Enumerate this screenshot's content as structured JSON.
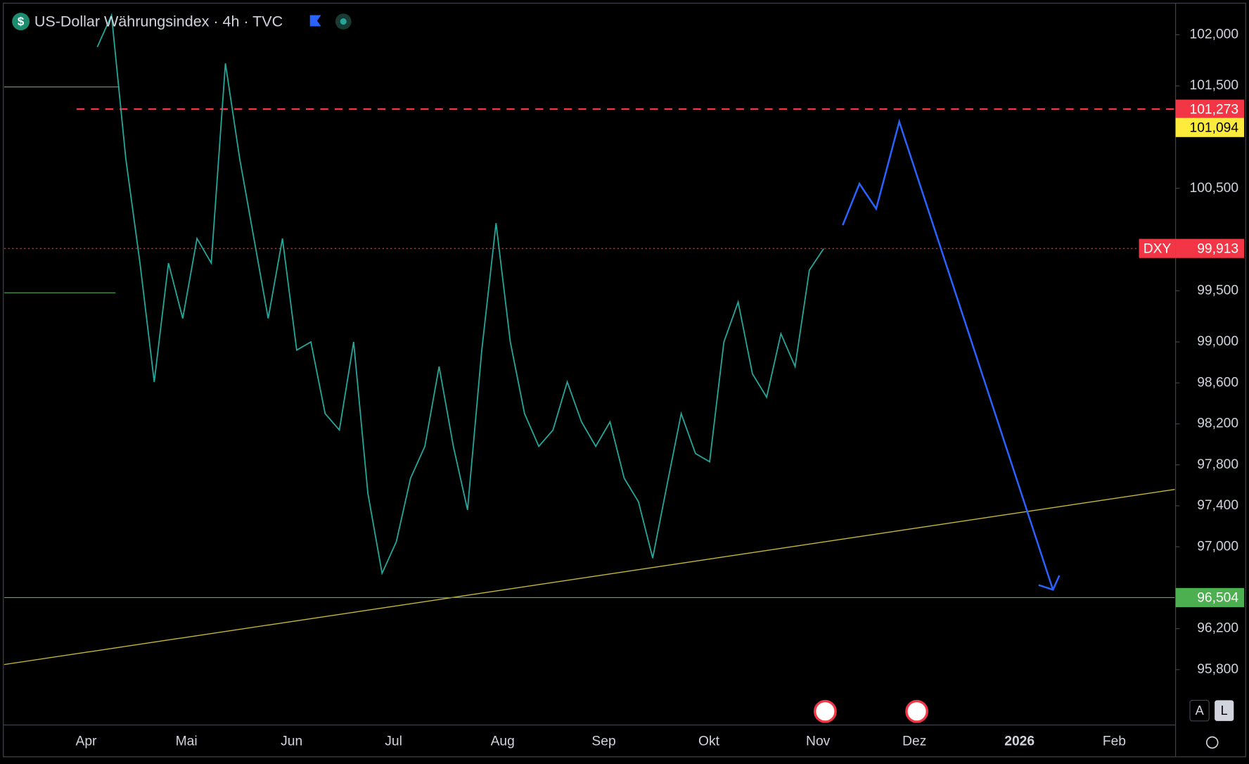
{
  "header": {
    "title": "US-Dollar Währungsindex · 4h · TVC",
    "symbol_icon": "$",
    "scale_buttons": [
      "A",
      "L"
    ]
  },
  "chart_data": {
    "type": "line",
    "ylim": [
      95.26,
      102.3
    ],
    "yticks": [
      {
        "value": 102,
        "label": "102,000"
      },
      {
        "value": 101.5,
        "label": "101,500"
      },
      {
        "value": 100.5,
        "label": "100,500"
      },
      {
        "value": 99.5,
        "label": "99,500"
      },
      {
        "value": 99,
        "label": "99,000"
      },
      {
        "value": 98.6,
        "label": "98,600"
      },
      {
        "value": 98.2,
        "label": "98,200"
      },
      {
        "value": 97.8,
        "label": "97,800"
      },
      {
        "value": 97.4,
        "label": "97,400"
      },
      {
        "value": 97,
        "label": "97,000"
      },
      {
        "value": 96.2,
        "label": "96,200"
      },
      {
        "value": 95.8,
        "label": "95,800"
      }
    ],
    "x_labels": [
      "Apr",
      "Mai",
      "Jun",
      "Jul",
      "Aug",
      "Sep",
      "Okt",
      "Nov",
      "Dez",
      "2026",
      "Feb"
    ],
    "series": [
      {
        "name": "DXY",
        "color": "#26a69a",
        "values": [
          101.88,
          102.19,
          100.79,
          99.77,
          98.61,
          99.77,
          99.23,
          100.01,
          99.77,
          101.72,
          100.79,
          100.01,
          99.23,
          100.01,
          98.92,
          99.0,
          98.3,
          98.14,
          99.0,
          97.52,
          96.74,
          97.05,
          97.67,
          97.98,
          98.76,
          97.98,
          97.36,
          98.92,
          100.16,
          99.0,
          98.3,
          97.98,
          98.14,
          98.61,
          98.22,
          97.98,
          98.22,
          97.67,
          97.44,
          96.89,
          97.6,
          98.3,
          97.91,
          97.83,
          99.0,
          99.39,
          98.69,
          98.46,
          99.08,
          98.76,
          99.7,
          99.91
        ]
      }
    ],
    "levels": [
      {
        "value": 101.273,
        "label": "101,273",
        "color": "#f23645",
        "style": "dashed"
      },
      {
        "value": 101.094,
        "label": "101,094",
        "color": "#ffeb3b",
        "style": "none"
      },
      {
        "value": 99.913,
        "label": "99,913",
        "color": "#f23645",
        "style": "dotted"
      },
      {
        "value": 96.504,
        "label": "96,504",
        "color": "#4caf50",
        "style": "solid"
      }
    ],
    "short_levels": {
      "color": "#4caf50",
      "values": [
        101.49,
        99.48
      ]
    },
    "trendline": {
      "color": "#c9b93a",
      "values": [
        95.85,
        97.56
      ]
    },
    "projection": {
      "color": "#2962ff",
      "values": [
        100.14,
        100.545,
        100.3,
        101.15,
        96.58
      ]
    }
  }
}
